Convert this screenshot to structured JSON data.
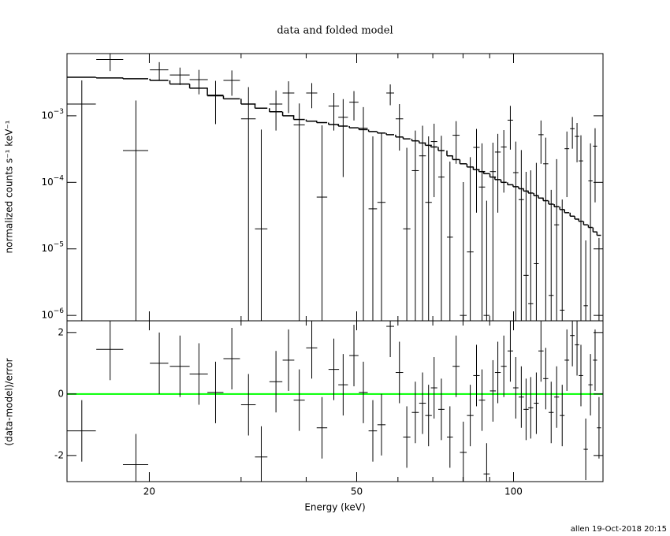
{
  "chart_data": [
    {
      "type": "scatter",
      "title": "data and folded model",
      "ylabel": "normalized counts s⁻¹ keV⁻¹",
      "log_x": true,
      "log_y": true,
      "color": "#000000",
      "model_color": "#000000",
      "x": [
        14.84,
        16.82,
        18.85,
        20.9,
        22.9,
        24.9,
        26.8,
        28.8,
        31.0,
        32.8,
        35.0,
        37.0,
        38.8,
        41.0,
        42.9,
        45.2,
        47.1,
        49.4,
        51.5,
        53.7,
        55.8,
        58.0,
        60.4,
        62.4,
        64.8,
        66.9,
        68.7,
        70.4,
        72.7,
        75.5,
        77.6,
        80.1,
        82.6,
        84.9,
        87.0,
        88.8,
        91.3,
        93.3,
        95.8,
        98.6,
        101.0,
        103.5,
        105.7,
        107.9,
        110.6,
        112.9,
        115.3,
        118.1,
        121.0,
        124.0,
        126.6,
        129.7,
        132.4,
        134.7,
        137.6,
        140.5,
        143.4,
        145.9
      ],
      "xerr": [
        0.95,
        1.0,
        1.05,
        0.85,
        1.0,
        1.0,
        0.95,
        1.05,
        1.0,
        0.9,
        1.0,
        0.95,
        0.95,
        1.0,
        1.0,
        1.05,
        1.0,
        1.0,
        1.0,
        1.0,
        1.0,
        1.0,
        1.0,
        1.0,
        1.0,
        1.0,
        1.0,
        1.0,
        1.0,
        1.0,
        1.2,
        1.2,
        1.2,
        1.2,
        1.2,
        1.2,
        1.2,
        1.2,
        1.2,
        1.2,
        1.2,
        1.2,
        1.2,
        1.2,
        1.2,
        1.3,
        1.3,
        1.3,
        1.3,
        1.3,
        1.3,
        1.3,
        1.3,
        1.3,
        1.3,
        1.3,
        1.3,
        1.3
      ],
      "values": [
        0.0015,
        0.007,
        0.0003,
        0.0049,
        0.0041,
        0.0035,
        0.00205,
        0.0034,
        0.0009,
        2e-05,
        0.0015,
        0.0022,
        0.00073,
        0.0022,
        6e-05,
        0.0014,
        0.00095,
        0.0016,
        0.00065,
        4e-05,
        5e-05,
        0.0022,
        0.0009,
        2e-05,
        0.00015,
        0.00025,
        5e-05,
        0.00041,
        0.00012,
        1.5e-05,
        0.00051,
        1e-06,
        9e-06,
        0.000335,
        8.5e-05,
        1e-06,
        0.000145,
        0.000285,
        0.00034,
        0.00086,
        0.00014,
        5.5e-05,
        4e-06,
        1.5e-06,
        6e-06,
        0.00052,
        0.00019,
        2e-06,
        2.3e-05,
        1.2e-06,
        0.00032,
        0.00064,
        0.00049,
        0.00021,
        1.4e-06,
        0.000105,
        0.00035,
        6e-07
      ],
      "errors": [
        0.0019,
        0.0023,
        0.0014,
        0.0015,
        0.0012,
        0.0014,
        0.0013,
        0.0014,
        0.0018,
        0.0006,
        0.0009,
        0.0011,
        0.0008,
        0.0009,
        0.00066,
        0.0008,
        0.00083,
        0.00075,
        0.0007,
        0.00045,
        0.0005,
        0.00076,
        0.0006,
        0.00031,
        0.00045,
        0.00046,
        0.00044,
        0.00035,
        0.00038,
        0.00019,
        0.00032,
        0.0001,
        0.00023,
        0.0003,
        0.0003,
        5.2e-05,
        0.00025,
        0.00025,
        0.00027,
        0.00055,
        0.00027,
        0.00025,
        0.00014,
        0.00015,
        0.00019,
        0.00033,
        0.00028,
        7.5e-05,
        0.0002,
        5.4e-05,
        0.00026,
        0.00032,
        0.00029,
        0.0003,
        1.2e-05,
        0.00028,
        0.0003,
        1.4e-05
      ],
      "model": [
        0.0038,
        0.0037,
        0.0036,
        0.0034,
        0.003,
        0.0026,
        0.002,
        0.0018,
        0.0015,
        0.0013,
        0.00115,
        0.001,
        0.00088,
        0.00083,
        0.00079,
        0.00074,
        0.0007,
        0.00066,
        0.00062,
        0.00058,
        0.00055,
        0.00052,
        0.00048,
        0.00045,
        0.00042,
        0.00039,
        0.00036,
        0.00034,
        0.0003,
        0.00025,
        0.00022,
        0.00019,
        0.00017,
        0.000155,
        0.000145,
        0.000135,
        0.00012,
        0.00011,
        0.0001,
        9.2e-05,
        8.6e-05,
        8e-05,
        7.4e-05,
        6.9e-05,
        6.3e-05,
        5.8e-05,
        5.3e-05,
        4.7e-05,
        4.3e-05,
        3.9e-05,
        3.5e-05,
        3.1e-05,
        2.8e-05,
        2.6e-05,
        2.3e-05,
        2.1e-05,
        1.8e-05,
        1.6e-05
      ],
      "xlim": [
        13.9,
        148.5
      ],
      "ylim": [
        8.3e-07,
        0.0086
      ],
      "yticks": [
        {
          "value": 1e-06,
          "label": "10−6"
        },
        {
          "value": 1e-05,
          "label": "10−5"
        },
        {
          "value": 0.0001,
          "label": "10−4"
        },
        {
          "value": 0.001,
          "label": "10−3"
        }
      ]
    },
    {
      "type": "scatter",
      "xlabel": "Energy (keV)",
      "ylabel": "(data-model)/error",
      "log_x": true,
      "color": "#000000",
      "x": [
        14.84,
        16.82,
        18.85,
        20.9,
        22.9,
        24.9,
        26.8,
        28.8,
        31.0,
        32.8,
        35.0,
        37.0,
        38.8,
        41.0,
        42.9,
        45.2,
        47.1,
        49.4,
        51.5,
        53.7,
        55.8,
        58.0,
        60.4,
        62.4,
        64.8,
        66.9,
        68.7,
        70.4,
        72.7,
        75.5,
        77.6,
        80.1,
        82.6,
        84.9,
        87.0,
        88.8,
        91.3,
        93.3,
        95.8,
        98.6,
        101.0,
        103.5,
        105.7,
        107.9,
        110.6,
        112.9,
        115.3,
        118.1,
        121.0,
        124.0,
        126.6,
        129.7,
        132.4,
        134.7,
        137.6,
        140.5,
        143.4,
        145.9
      ],
      "xerr": [
        0.95,
        1.0,
        1.05,
        0.85,
        1.0,
        1.0,
        0.95,
        1.05,
        1.0,
        0.9,
        1.0,
        0.95,
        0.95,
        1.0,
        1.0,
        1.05,
        1.0,
        1.0,
        1.0,
        1.0,
        1.0,
        1.0,
        1.0,
        1.0,
        1.0,
        1.0,
        1.0,
        1.0,
        1.0,
        1.0,
        1.2,
        1.2,
        1.2,
        1.2,
        1.2,
        1.2,
        1.2,
        1.2,
        1.2,
        1.2,
        1.2,
        1.2,
        1.2,
        1.2,
        1.2,
        1.3,
        1.3,
        1.3,
        1.3,
        1.3,
        1.3,
        1.3,
        1.3,
        1.3,
        1.3,
        1.3,
        1.3,
        1.3
      ],
      "values": [
        -1.2,
        1.45,
        -2.3,
        1.0,
        0.9,
        0.65,
        0.05,
        1.15,
        -0.35,
        -2.05,
        0.4,
        1.1,
        -0.2,
        1.5,
        -1.1,
        0.8,
        0.3,
        1.25,
        0.05,
        -1.2,
        -1.0,
        2.2,
        0.7,
        -1.4,
        -0.6,
        -0.3,
        -0.7,
        0.2,
        -0.5,
        -1.4,
        0.9,
        -1.9,
        -0.7,
        0.6,
        -0.2,
        -2.6,
        0.1,
        0.7,
        0.9,
        1.4,
        0.2,
        -0.1,
        -0.5,
        -0.45,
        -0.3,
        1.4,
        0.5,
        -0.6,
        -0.1,
        -0.7,
        1.1,
        1.9,
        1.6,
        0.6,
        -1.8,
        0.3,
        1.1,
        -1.1
      ],
      "errors": [
        1,
        1,
        1,
        1,
        1,
        1,
        1,
        1,
        1,
        1,
        1,
        1,
        1,
        1,
        1,
        1,
        1,
        1,
        1,
        1,
        1,
        1,
        1,
        1,
        1,
        1,
        1,
        1,
        1,
        1,
        1,
        1,
        1,
        1,
        1,
        1,
        1,
        1,
        1,
        1,
        1,
        1,
        1,
        1,
        1,
        1,
        1,
        1,
        1,
        1,
        1,
        1,
        1,
        1,
        1,
        1,
        1,
        1
      ],
      "reference_line": 0,
      "reference_color": "#00ff00",
      "xlim": [
        13.9,
        148.5
      ],
      "xticks": [
        20,
        50,
        100
      ],
      "xminorticks": [
        30,
        40,
        60,
        70,
        80,
        90
      ],
      "ylim": [
        -2.85,
        2.38
      ],
      "yticks": [
        -2,
        0,
        2
      ]
    }
  ],
  "footer": "allen 19-Oct-2018 20:15"
}
